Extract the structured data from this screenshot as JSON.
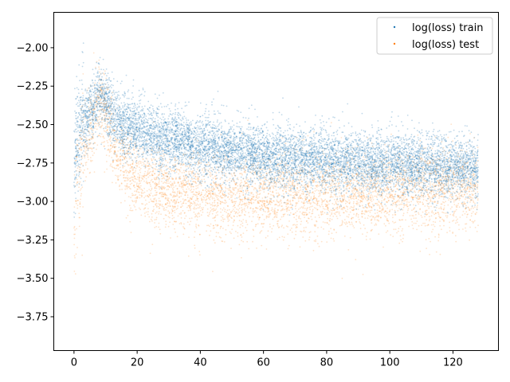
{
  "chart_data": {
    "type": "scatter",
    "xlim": [
      -6.4,
      134.4
    ],
    "ylim": [
      -3.97,
      -1.77
    ],
    "x_ticks": [
      0,
      20,
      40,
      60,
      80,
      100,
      120
    ],
    "x_tick_labels": [
      "0",
      "20",
      "40",
      "60",
      "80",
      "100",
      "120"
    ],
    "y_ticks": [
      -2.0,
      -2.25,
      -2.5,
      -2.75,
      -3.0,
      -3.25,
      -3.5,
      -3.75
    ],
    "y_tick_labels": [
      "−2.00",
      "−2.25",
      "−2.50",
      "−2.75",
      "−3.00",
      "−3.25",
      "−3.50",
      "−3.75"
    ],
    "legend_position": "top-right",
    "grid": false,
    "series": [
      {
        "name": "log(loss) train",
        "color": "#1f77b4",
        "x": [
          0,
          1,
          2,
          4,
          6,
          8,
          10,
          12,
          15,
          20,
          25,
          30,
          40,
          50,
          60,
          70,
          80,
          90,
          100,
          110,
          120,
          128
        ],
        "y": [
          -2.85,
          -2.55,
          -2.5,
          -2.45,
          -2.4,
          -2.3,
          -2.35,
          -2.42,
          -2.5,
          -2.53,
          -2.57,
          -2.6,
          -2.64,
          -2.68,
          -2.7,
          -2.72,
          -2.73,
          -2.75,
          -2.76,
          -2.77,
          -2.78,
          -2.79
        ]
      },
      {
        "name": "log(loss) test",
        "color": "#ff7f0e",
        "x": [
          0,
          1,
          2,
          4,
          6,
          8,
          10,
          12,
          15,
          20,
          25,
          30,
          40,
          50,
          60,
          70,
          80,
          90,
          100,
          110,
          120,
          128
        ],
        "y": [
          -3.3,
          -2.9,
          -2.75,
          -2.6,
          -2.5,
          -2.35,
          -2.45,
          -2.6,
          -2.75,
          -2.85,
          -2.9,
          -2.92,
          -2.95,
          -2.96,
          -2.96,
          -2.96,
          -2.96,
          -2.95,
          -2.95,
          -2.93,
          -2.92,
          -2.92
        ]
      }
    ]
  }
}
